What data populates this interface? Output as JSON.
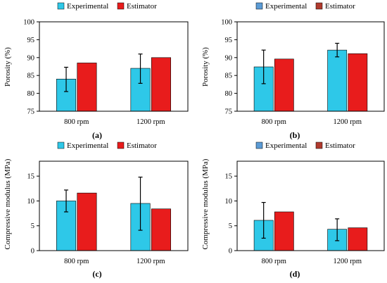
{
  "chart_data": [
    {
      "panel": "(a)",
      "type": "bar",
      "categories": [
        "800 rpm",
        "1200 rpm"
      ],
      "ylabel": "Porosity (%)",
      "ylim": [
        75,
        100
      ],
      "yticks": [
        75,
        80,
        85,
        90,
        95,
        100
      ],
      "series": [
        {
          "name": "Experimental",
          "values": [
            84.0,
            87.0
          ],
          "err_low": [
            80.5,
            82.8
          ],
          "err_high": [
            87.3,
            91.0
          ]
        },
        {
          "name": "Estimator",
          "values": [
            88.5,
            90.0
          ]
        }
      ]
    },
    {
      "panel": "(b)",
      "type": "bar",
      "categories": [
        "800 rpm",
        "1200 rpm"
      ],
      "ylabel": "Porosity (%)",
      "ylim": [
        75,
        100
      ],
      "yticks": [
        75,
        80,
        85,
        90,
        95,
        100
      ],
      "series": [
        {
          "name": "Experimental",
          "values": [
            87.4,
            92.1
          ],
          "err_low": [
            82.7,
            90.2
          ],
          "err_high": [
            92.1,
            94.0
          ]
        },
        {
          "name": "Estimator",
          "values": [
            89.6,
            91.1
          ]
        }
      ]
    },
    {
      "panel": "(c)",
      "type": "bar",
      "categories": [
        "800 rpm",
        "1200 rpm"
      ],
      "ylabel": "Compressive modulus (MPa)",
      "ylim": [
        0,
        18
      ],
      "yticks": [
        0,
        5,
        10,
        15
      ],
      "series": [
        {
          "name": "Experimental",
          "values": [
            10.0,
            9.5
          ],
          "err_low": [
            7.8,
            4.1
          ],
          "err_high": [
            12.2,
            14.8
          ]
        },
        {
          "name": "Estimator",
          "values": [
            11.6,
            8.4
          ]
        }
      ]
    },
    {
      "panel": "(d)",
      "type": "bar",
      "categories": [
        "800 rpm",
        "1200 rpm"
      ],
      "ylabel": "Compressive modulus (MPa)",
      "ylim": [
        0,
        18
      ],
      "yticks": [
        0,
        5,
        10,
        15
      ],
      "series": [
        {
          "name": "Experimental",
          "values": [
            6.1,
            4.3
          ],
          "err_low": [
            2.5,
            2.0
          ],
          "err_high": [
            9.7,
            6.4
          ]
        },
        {
          "name": "Estimator",
          "values": [
            7.8,
            4.6
          ]
        }
      ]
    }
  ],
  "colors": {
    "experimental": "#2ec8e8",
    "estimator": "#e81c1c",
    "legend_experimental_b": "#5b9bd5",
    "legend_estimator_b": "#b03a2e",
    "error_bar": "#000000",
    "frame": "#000000"
  }
}
